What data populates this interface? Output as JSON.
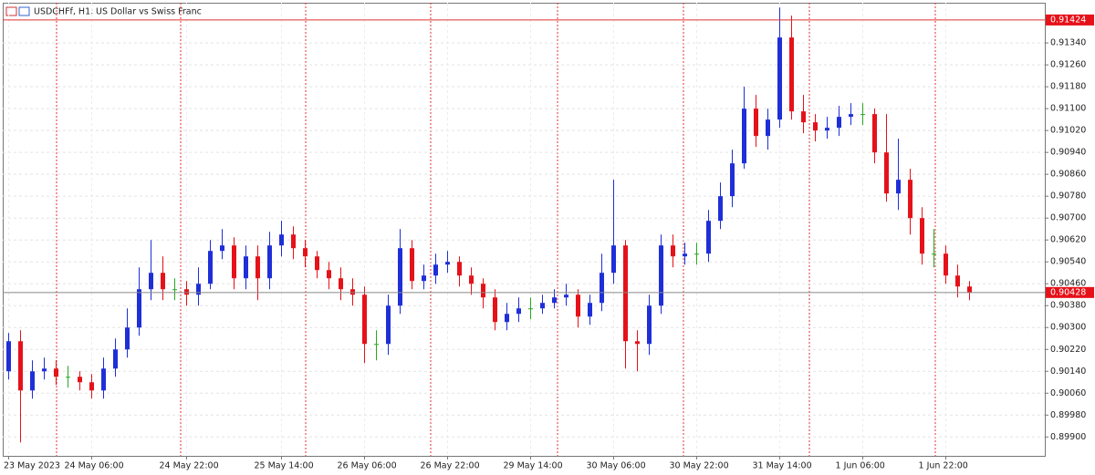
{
  "chart_data": {
    "type": "candlestick",
    "symbol": "USDCHFf, H1:",
    "title": "US Dollar vs Swiss Franc",
    "up_color": "#1f2fd8",
    "down_color": "#e5121a",
    "doji_color": "#27a822",
    "grid": true,
    "categories": [
      "23 May 2023",
      null,
      null,
      null,
      null,
      null,
      null,
      "24 May 06:00",
      null,
      null,
      null,
      null,
      null,
      null,
      null,
      "24 May 22:00",
      null,
      null,
      null,
      null,
      null,
      null,
      null,
      "25 May 14:00",
      null,
      null,
      null,
      null,
      null,
      null,
      "26 May 06:00",
      null,
      null,
      null,
      null,
      null,
      null,
      "26 May 22:00",
      null,
      null,
      null,
      null,
      null,
      null,
      "29 May 14:00",
      null,
      null,
      null,
      null,
      null,
      null,
      "30 May 06:00",
      null,
      null,
      null,
      null,
      null,
      null,
      "30 May 22:00",
      null,
      null,
      null,
      null,
      null,
      null,
      "31 May 14:00",
      null,
      null,
      null,
      null,
      null,
      null,
      "1 Jun 06:00",
      null,
      null,
      null,
      null,
      null,
      null,
      "1 Jun 22:00",
      null,
      null
    ],
    "open": [
      0.9014,
      0.9025,
      0.9007,
      0.9014,
      0.9015,
      0.9012,
      0.9012,
      0.901,
      0.9007,
      0.9015,
      0.9022,
      0.903,
      0.9044,
      0.905,
      0.9044,
      0.9044,
      0.9042,
      0.9046,
      0.9058,
      0.906,
      0.9048,
      0.9056,
      0.9048,
      0.906,
      0.9064,
      0.9059,
      0.9056,
      0.9051,
      0.9048,
      0.9044,
      0.9042,
      0.9024,
      0.9024,
      0.9038,
      0.9059,
      0.9047,
      0.9049,
      0.9053,
      0.9054,
      0.9049,
      0.9046,
      0.9041,
      0.9032,
      0.9035,
      0.9037,
      0.9037,
      0.9039,
      0.9041,
      0.9042,
      0.9034,
      0.9039,
      0.905,
      0.906,
      0.9025,
      0.9024,
      0.9038,
      0.906,
      0.9056,
      0.9057,
      0.9057,
      0.9069,
      0.9078,
      0.909,
      0.911,
      0.91,
      0.9106,
      0.9136,
      0.9109,
      0.9105,
      0.9102,
      0.9103,
      0.9107,
      0.9108,
      0.9108,
      0.9094,
      0.9079,
      0.9084,
      0.907,
      0.9057,
      0.9057,
      0.9049,
      0.9045
    ],
    "high": [
      0.9028,
      0.9029,
      0.9018,
      0.9019,
      0.9018,
      0.9016,
      0.9014,
      0.9013,
      0.9019,
      0.9026,
      0.9037,
      0.9052,
      0.9062,
      0.9056,
      0.9048,
      0.9047,
      0.9052,
      0.9062,
      0.9066,
      0.9063,
      0.906,
      0.906,
      0.9065,
      0.9069,
      0.9067,
      0.9062,
      0.9058,
      0.9054,
      0.9052,
      0.9048,
      0.9045,
      0.9029,
      0.9042,
      0.9066,
      0.9062,
      0.9053,
      0.9057,
      0.9058,
      0.9056,
      0.9052,
      0.9048,
      0.9044,
      0.9039,
      0.9041,
      0.9041,
      0.9042,
      0.9044,
      0.9046,
      0.9044,
      0.9042,
      0.9057,
      0.9084,
      0.9062,
      0.9029,
      0.9042,
      0.9064,
      0.9064,
      0.9061,
      0.9061,
      0.9073,
      0.9083,
      0.9095,
      0.9118,
      0.9115,
      0.911,
      0.9147,
      0.9144,
      0.9115,
      0.9108,
      0.9107,
      0.9111,
      0.9112,
      0.9112,
      0.911,
      0.9108,
      0.9099,
      0.9088,
      0.9074,
      0.9066,
      0.906,
      0.9053,
      0.9047
    ],
    "low": [
      0.9011,
      0.8988,
      0.9004,
      0.9011,
      0.9009,
      0.9008,
      0.9007,
      0.9004,
      0.9004,
      0.9012,
      0.9019,
      0.9027,
      0.904,
      0.904,
      0.904,
      0.9038,
      0.9038,
      0.9044,
      0.9055,
      0.9044,
      0.9044,
      0.904,
      0.9044,
      0.9056,
      0.9055,
      0.9052,
      0.9048,
      0.9044,
      0.904,
      0.9038,
      0.9017,
      0.9018,
      0.902,
      0.9035,
      0.9044,
      0.9044,
      0.9046,
      0.905,
      0.9045,
      0.9042,
      0.9037,
      0.9029,
      0.9029,
      0.9032,
      0.9033,
      0.9035,
      0.9037,
      0.9038,
      0.903,
      0.9031,
      0.9036,
      0.9046,
      0.9015,
      0.9014,
      0.902,
      0.9035,
      0.9052,
      0.9053,
      0.9053,
      0.9054,
      0.9066,
      0.9074,
      0.9088,
      0.9096,
      0.9095,
      0.9103,
      0.9106,
      0.9101,
      0.9098,
      0.9099,
      0.91,
      0.9104,
      0.9104,
      0.909,
      0.9076,
      0.9073,
      0.9064,
      0.9053,
      0.9052,
      0.9046,
      0.9041,
      0.904
    ],
    "close": [
      0.9025,
      0.9007,
      0.9014,
      0.9015,
      0.9012,
      0.9012,
      0.901,
      0.9007,
      0.9015,
      0.9022,
      0.903,
      0.9044,
      0.905,
      0.9044,
      0.9044,
      0.9042,
      0.9046,
      0.9058,
      0.906,
      0.9048,
      0.9056,
      0.9048,
      0.906,
      0.9064,
      0.9059,
      0.9056,
      0.9051,
      0.9048,
      0.9044,
      0.9042,
      0.9024,
      0.9024,
      0.9038,
      0.9059,
      0.9047,
      0.9049,
      0.9053,
      0.9054,
      0.9049,
      0.9046,
      0.9041,
      0.9032,
      0.9035,
      0.9037,
      0.9037,
      0.9039,
      0.9041,
      0.9042,
      0.9034,
      0.9039,
      0.905,
      0.906,
      0.9025,
      0.9024,
      0.9038,
      0.906,
      0.9056,
      0.9057,
      0.9057,
      0.9069,
      0.9078,
      0.909,
      0.911,
      0.91,
      0.9106,
      0.9136,
      0.9109,
      0.9105,
      0.9102,
      0.9103,
      0.9107,
      0.9108,
      0.9108,
      0.9094,
      0.9079,
      0.9084,
      0.907,
      0.9057,
      0.9057,
      0.9049,
      0.9045,
      0.90428
    ],
    "ylim": [
      0.89831,
      0.91487
    ],
    "yticks": [
      {
        "value": 0.899,
        "label": "0.89900"
      },
      {
        "value": 0.8998,
        "label": "0.89980"
      },
      {
        "value": 0.9006,
        "label": "0.90060"
      },
      {
        "value": 0.9014,
        "label": "0.90140"
      },
      {
        "value": 0.9022,
        "label": "0.90220"
      },
      {
        "value": 0.903,
        "label": "0.90300"
      },
      {
        "value": 0.9038,
        "label": "0.90380"
      },
      {
        "value": 0.9046,
        "label": "0.90460"
      },
      {
        "value": 0.9054,
        "label": "0.90540"
      },
      {
        "value": 0.9062,
        "label": "0.90620"
      },
      {
        "value": 0.907,
        "label": "0.90700"
      },
      {
        "value": 0.9078,
        "label": "0.90780"
      },
      {
        "value": 0.9086,
        "label": "0.90860"
      },
      {
        "value": 0.9094,
        "label": "0.90940"
      },
      {
        "value": 0.9102,
        "label": "0.91020"
      },
      {
        "value": 0.911,
        "label": "0.91100"
      },
      {
        "value": 0.9118,
        "label": "0.91180"
      },
      {
        "value": 0.9126,
        "label": "0.91260"
      },
      {
        "value": 0.9134,
        "label": "0.91340"
      }
    ],
    "price_lines": [
      {
        "value": 0.91424,
        "label": "0.91424"
      },
      {
        "value": 0.90428,
        "label": "0.90428"
      }
    ]
  }
}
